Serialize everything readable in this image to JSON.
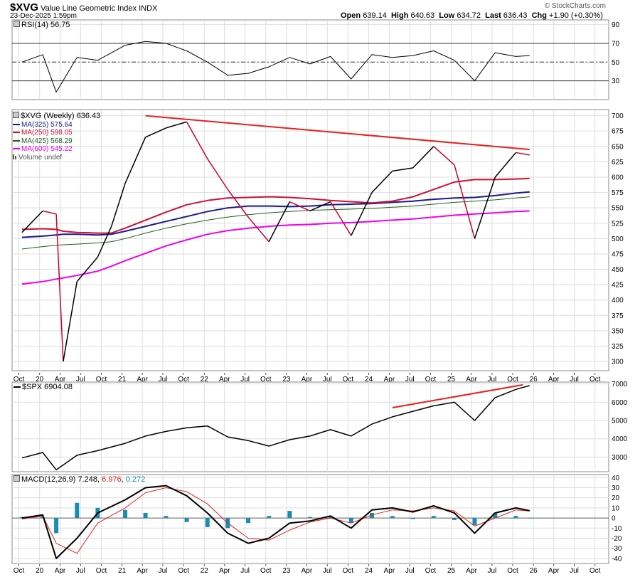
{
  "header": {
    "symbol": "$XVG",
    "name": "Value Line Geometric Index",
    "exchange": "INDX",
    "datetime": "23-Dec-2025 1:59pm",
    "watermark": "© StockCharts.com",
    "quote": {
      "open_label": "Open",
      "open": "639.14",
      "high_label": "High",
      "high": "640.63",
      "low_label": "Low",
      "low": "634.72",
      "last_label": "Last",
      "last": "636.43",
      "chg_label": "Chg",
      "chg": "+1.90 (+0.30%)"
    }
  },
  "colors": {
    "price_bar_up": "#000000",
    "price_bar_down": "#cc0033",
    "ma325": "#1a1a8c",
    "ma250": "#cc1133",
    "ma425": "#1f5f1f",
    "ma600": "#ee00ee",
    "trendline": "#e62020",
    "rsi_line": "#000000",
    "macd_line": "#000000",
    "macd_signal": "#e02020",
    "macd_hist": "#1a8cb0",
    "grid": "#dddddd"
  },
  "x_ticks": [
    "Oct",
    "20",
    "Apr",
    "Jul",
    "Oct",
    "21",
    "Apr",
    "Jul",
    "Oct",
    "22",
    "Apr",
    "Jul",
    "Oct",
    "23",
    "Apr",
    "Jul",
    "Oct",
    "24",
    "Apr",
    "Jul",
    "Oct",
    "25",
    "Apr",
    "Jul",
    "Oct",
    "26",
    "Apr",
    "Jul",
    "Oct"
  ],
  "chart_data": [
    {
      "type": "line",
      "panel": "RSI",
      "legend": "RSI(14) 56.75",
      "ylim": [
        10,
        95
      ],
      "y_ticks": [
        90,
        70,
        50,
        30
      ],
      "reference_lines": [
        70,
        50,
        30
      ],
      "x": [
        "2019-10",
        "2020-01",
        "2020-03",
        "2020-06",
        "2020-09",
        "2021-01",
        "2021-04",
        "2021-07",
        "2021-10",
        "2022-01",
        "2022-04",
        "2022-07",
        "2022-10",
        "2023-01",
        "2023-04",
        "2023-07",
        "2023-10",
        "2024-01",
        "2024-04",
        "2024-07",
        "2024-10",
        "2025-01",
        "2025-04",
        "2025-07",
        "2025-10",
        "2025-12"
      ],
      "series": [
        {
          "name": "RSI(14)",
          "values": [
            50,
            58,
            18,
            55,
            52,
            68,
            72,
            70,
            62,
            50,
            36,
            38,
            45,
            55,
            48,
            56,
            32,
            58,
            55,
            57,
            62,
            52,
            30,
            60,
            56,
            57
          ]
        }
      ]
    },
    {
      "type": "line",
      "panel": "price",
      "legend": [
        "$XVG (Weekly) 636.43",
        "MA(325) 575.64",
        "MA(250) 598.05",
        "MA(425) 568.29",
        "MA(600) 545.22",
        "Volume undef"
      ],
      "ylim": [
        285,
        710
      ],
      "y_ticks": [
        700,
        675,
        650,
        625,
        600,
        575,
        550,
        525,
        500,
        475,
        450,
        425,
        400,
        375,
        350,
        325,
        300
      ],
      "x": [
        "2019-10",
        "2020-01",
        "2020-03",
        "2020-04",
        "2020-06",
        "2020-09",
        "2020-11",
        "2021-01",
        "2021-04",
        "2021-07",
        "2021-10",
        "2022-01",
        "2022-04",
        "2022-07",
        "2022-10",
        "2023-01",
        "2023-04",
        "2023-07",
        "2023-10",
        "2024-01",
        "2024-04",
        "2024-07",
        "2024-10",
        "2025-01",
        "2025-04",
        "2025-07",
        "2025-10",
        "2025-12"
      ],
      "series": [
        {
          "name": "$XVG (Weekly)",
          "values": [
            510,
            545,
            540,
            300,
            430,
            470,
            520,
            590,
            665,
            680,
            690,
            630,
            580,
            535,
            495,
            560,
            545,
            560,
            505,
            575,
            610,
            615,
            650,
            620,
            500,
            600,
            640,
            636
          ]
        },
        {
          "name": "MA(325)",
          "values": [
            502,
            504,
            506,
            507,
            507,
            506,
            507,
            512,
            520,
            528,
            536,
            544,
            550,
            553,
            553,
            552,
            553,
            555,
            556,
            557,
            559,
            561,
            564,
            566,
            567,
            570,
            574,
            576
          ]
        },
        {
          "name": "MA(250)",
          "values": [
            515,
            516,
            515,
            512,
            510,
            509,
            509,
            517,
            530,
            543,
            555,
            562,
            566,
            567,
            568,
            567,
            565,
            562,
            560,
            558,
            561,
            568,
            580,
            592,
            596,
            596,
            597,
            598
          ]
        },
        {
          "name": "MA(425)",
          "values": [
            483,
            487,
            489,
            490,
            491,
            493,
            495,
            500,
            509,
            517,
            524,
            530,
            535,
            539,
            542,
            544,
            546,
            547,
            548,
            549,
            551,
            553,
            556,
            559,
            561,
            563,
            566,
            568
          ]
        },
        {
          "name": "MA(600)",
          "values": [
            426,
            430,
            434,
            436,
            440,
            447,
            455,
            464,
            476,
            488,
            498,
            507,
            513,
            517,
            520,
            522,
            523,
            525,
            526,
            528,
            530,
            532,
            535,
            538,
            540,
            542,
            544,
            545
          ]
        }
      ],
      "trendline": {
        "from": {
          "x": "2021-04",
          "y": 700
        },
        "to": {
          "x": "2025-12",
          "y": 645
        }
      }
    },
    {
      "type": "line",
      "panel": "SPX",
      "legend": "$SPX 6904.08",
      "ylim": [
        2200,
        7100
      ],
      "y_ticks": [
        7000,
        6000,
        5000,
        4000,
        3000
      ],
      "x": [
        "2019-10",
        "2020-01",
        "2020-03",
        "2020-06",
        "2020-09",
        "2021-01",
        "2021-04",
        "2021-07",
        "2021-10",
        "2022-01",
        "2022-04",
        "2022-07",
        "2022-10",
        "2023-01",
        "2023-04",
        "2023-07",
        "2023-10",
        "2024-01",
        "2024-04",
        "2024-07",
        "2024-10",
        "2025-01",
        "2025-04",
        "2025-07",
        "2025-10",
        "2025-12"
      ],
      "series": [
        {
          "name": "$SPX",
          "values": [
            2950,
            3250,
            2300,
            3100,
            3350,
            3750,
            4150,
            4400,
            4600,
            4700,
            4100,
            3900,
            3600,
            3950,
            4150,
            4500,
            4150,
            4800,
            5200,
            5500,
            5800,
            6000,
            5000,
            6250,
            6700,
            6904
          ]
        }
      ],
      "trendline": {
        "from": {
          "x": "2024-04",
          "y": 5700
        },
        "to": {
          "x": "2025-11",
          "y": 6950
        }
      }
    },
    {
      "type": "line",
      "panel": "MACD",
      "legend": [
        "MACD(12,26,9)",
        "7.248",
        "6.976",
        "0.272"
      ],
      "ylim": [
        -45,
        43
      ],
      "y_ticks": [
        40,
        30,
        20,
        10,
        0,
        -10,
        -20,
        -30,
        -40
      ],
      "x": [
        "2019-10",
        "2020-01",
        "2020-03",
        "2020-06",
        "2020-09",
        "2021-01",
        "2021-04",
        "2021-07",
        "2021-10",
        "2022-01",
        "2022-04",
        "2022-07",
        "2022-10",
        "2023-01",
        "2023-04",
        "2023-07",
        "2023-10",
        "2024-01",
        "2024-04",
        "2024-07",
        "2024-10",
        "2025-01",
        "2025-04",
        "2025-07",
        "2025-10",
        "2025-12"
      ],
      "series": [
        {
          "name": "MACD",
          "values": [
            0,
            3,
            -40,
            -20,
            5,
            18,
            30,
            32,
            22,
            5,
            -15,
            -25,
            -20,
            -5,
            -3,
            2,
            -10,
            8,
            10,
            6,
            12,
            5,
            -15,
            5,
            10,
            7.248
          ]
        },
        {
          "name": "Signal",
          "values": [
            -1,
            2,
            -25,
            -35,
            -5,
            10,
            25,
            30,
            26,
            14,
            -5,
            -20,
            -22,
            -12,
            -4,
            0,
            -5,
            3,
            8,
            7,
            10,
            7,
            -8,
            0,
            8,
            6.976
          ]
        },
        {
          "name": "Histogram",
          "values": [
            1,
            1,
            -15,
            15,
            10,
            8,
            5,
            2,
            -4,
            -9,
            -10,
            -5,
            2,
            7,
            1,
            2,
            -5,
            5,
            2,
            -1,
            2,
            -2,
            -7,
            5,
            2,
            0.272
          ]
        }
      ]
    }
  ]
}
